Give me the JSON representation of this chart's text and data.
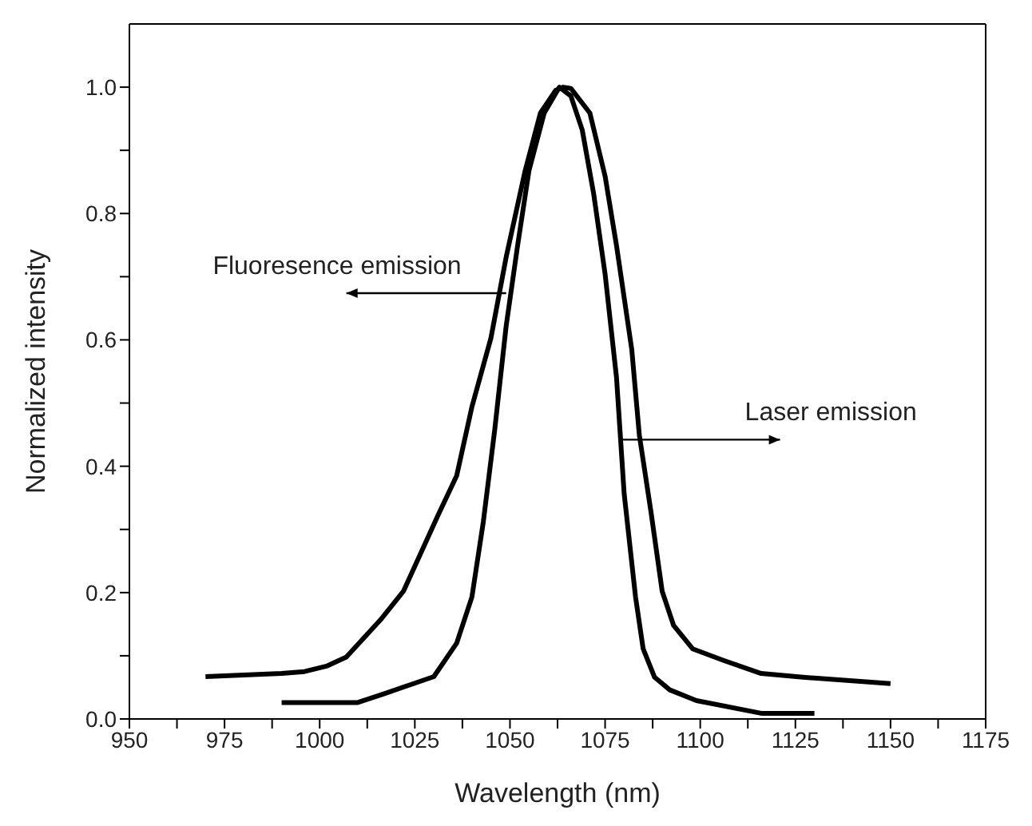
{
  "chart_data": {
    "type": "line",
    "xlabel": "Wavelength (nm)",
    "ylabel": "Normalized intensity",
    "xlim": [
      950,
      1175
    ],
    "ylim": [
      0,
      1.1
    ],
    "xticks": [
      950,
      {
        "value": 962.5,
        "label": null
      },
      975,
      {
        "value": 987.5,
        "label": null
      },
      1000,
      {
        "value": 1012.5,
        "label": null
      },
      1025,
      {
        "value": 1037.5,
        "label": null
      },
      1050,
      {
        "value": 1062.5,
        "label": null
      },
      1075,
      {
        "value": 1087.5,
        "label": null
      },
      1100,
      {
        "value": 1112.5,
        "label": null
      },
      1125,
      {
        "value": 1137.5,
        "label": null
      },
      1150,
      {
        "value": 1162.5,
        "label": null
      },
      1175
    ],
    "yticks": [
      {
        "value": 0,
        "label": "0.0"
      },
      {
        "value": 0.1,
        "label": null
      },
      0.2,
      {
        "value": 0.3,
        "label": null
      },
      0.4,
      {
        "value": 0.5,
        "label": null
      },
      0.6,
      {
        "value": 0.7,
        "label": null
      },
      0.8,
      {
        "value": 0.9,
        "label": null
      },
      {
        "value": 1,
        "label": "1.0"
      }
    ],
    "marker": "none",
    "line_style": "solid",
    "series": [
      {
        "color": "#000000",
        "x": [
          970,
          990,
          996,
          1002,
          1007,
          1016,
          1022,
          1031,
          1036,
          1040,
          1045,
          1049,
          1054,
          1058,
          1062,
          1064,
          1066,
          1071,
          1075,
          1078,
          1082,
          1084,
          1087,
          1090,
          1093,
          1098,
          1106,
          1116,
          1127,
          1150
        ],
        "values": [
          0.067,
          0.072,
          0.075,
          0.084,
          0.098,
          0.157,
          0.202,
          0.321,
          0.385,
          0.494,
          0.603,
          0.731,
          0.868,
          0.959,
          0.995,
          1.0,
          0.998,
          0.959,
          0.859,
          0.749,
          0.585,
          0.449,
          0.33,
          0.202,
          0.148,
          0.111,
          0.093,
          0.072,
          0.066,
          0.056
        ]
      },
      {
        "color": "#000000",
        "x": [
          990,
          1010,
          1017,
          1030,
          1036,
          1040,
          1043,
          1046,
          1049,
          1052,
          1055,
          1059,
          1063,
          1066,
          1069,
          1072,
          1075,
          1078,
          1080,
          1083,
          1085,
          1088,
          1092,
          1099,
          1116,
          1130
        ],
        "values": [
          0.026,
          0.026,
          0.04,
          0.067,
          0.12,
          0.193,
          0.312,
          0.458,
          0.622,
          0.749,
          0.868,
          0.959,
          1.0,
          0.986,
          0.932,
          0.831,
          0.704,
          0.54,
          0.357,
          0.193,
          0.111,
          0.066,
          0.046,
          0.029,
          0.009,
          0.009
        ]
      }
    ],
    "annotations": [
      {
        "text": "Fluoresence emission",
        "x": 1049,
        "y": 0.674
      },
      {
        "text": "Laser emission",
        "x": 1079,
        "y": 0.442
      }
    ]
  }
}
